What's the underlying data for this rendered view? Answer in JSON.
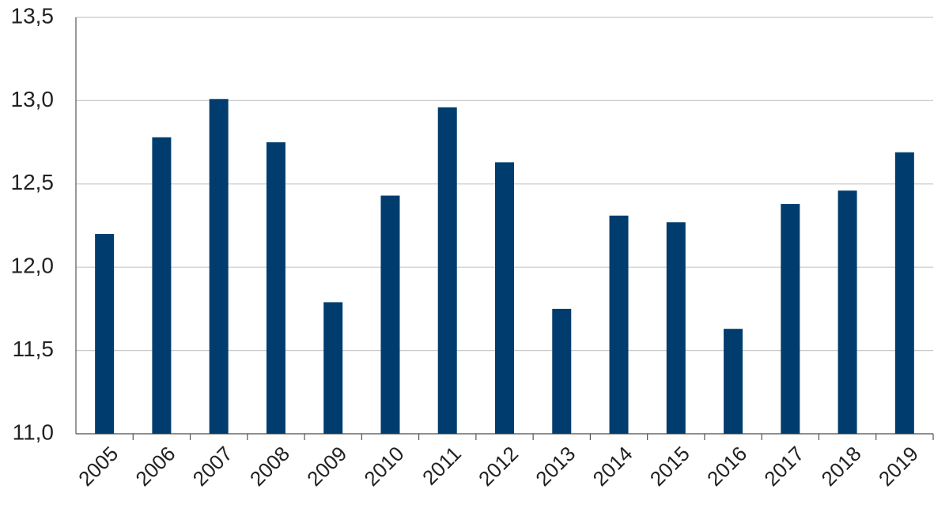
{
  "chart_data": {
    "type": "bar",
    "categories": [
      "2005",
      "2006",
      "2007",
      "2008",
      "2009",
      "2010",
      "2011",
      "2012",
      "2013",
      "2014",
      "2015",
      "2016",
      "2017",
      "2018",
      "2019"
    ],
    "values": [
      12.2,
      12.78,
      13.01,
      12.75,
      11.79,
      12.43,
      12.96,
      12.63,
      11.75,
      12.31,
      12.27,
      11.63,
      12.38,
      12.46,
      12.69
    ],
    "color": "#003d6e",
    "ylim": [
      11,
      13.5
    ],
    "yticks": [
      {
        "value": 11,
        "label": "11,0"
      },
      {
        "value": 11.5,
        "label": "11,5"
      },
      {
        "value": 12,
        "label": "12,0"
      },
      {
        "value": 12.5,
        "label": "12,5"
      },
      {
        "value": 13,
        "label": "13,0"
      },
      {
        "value": 13.5,
        "label": "13,5"
      }
    ],
    "grid": true
  }
}
